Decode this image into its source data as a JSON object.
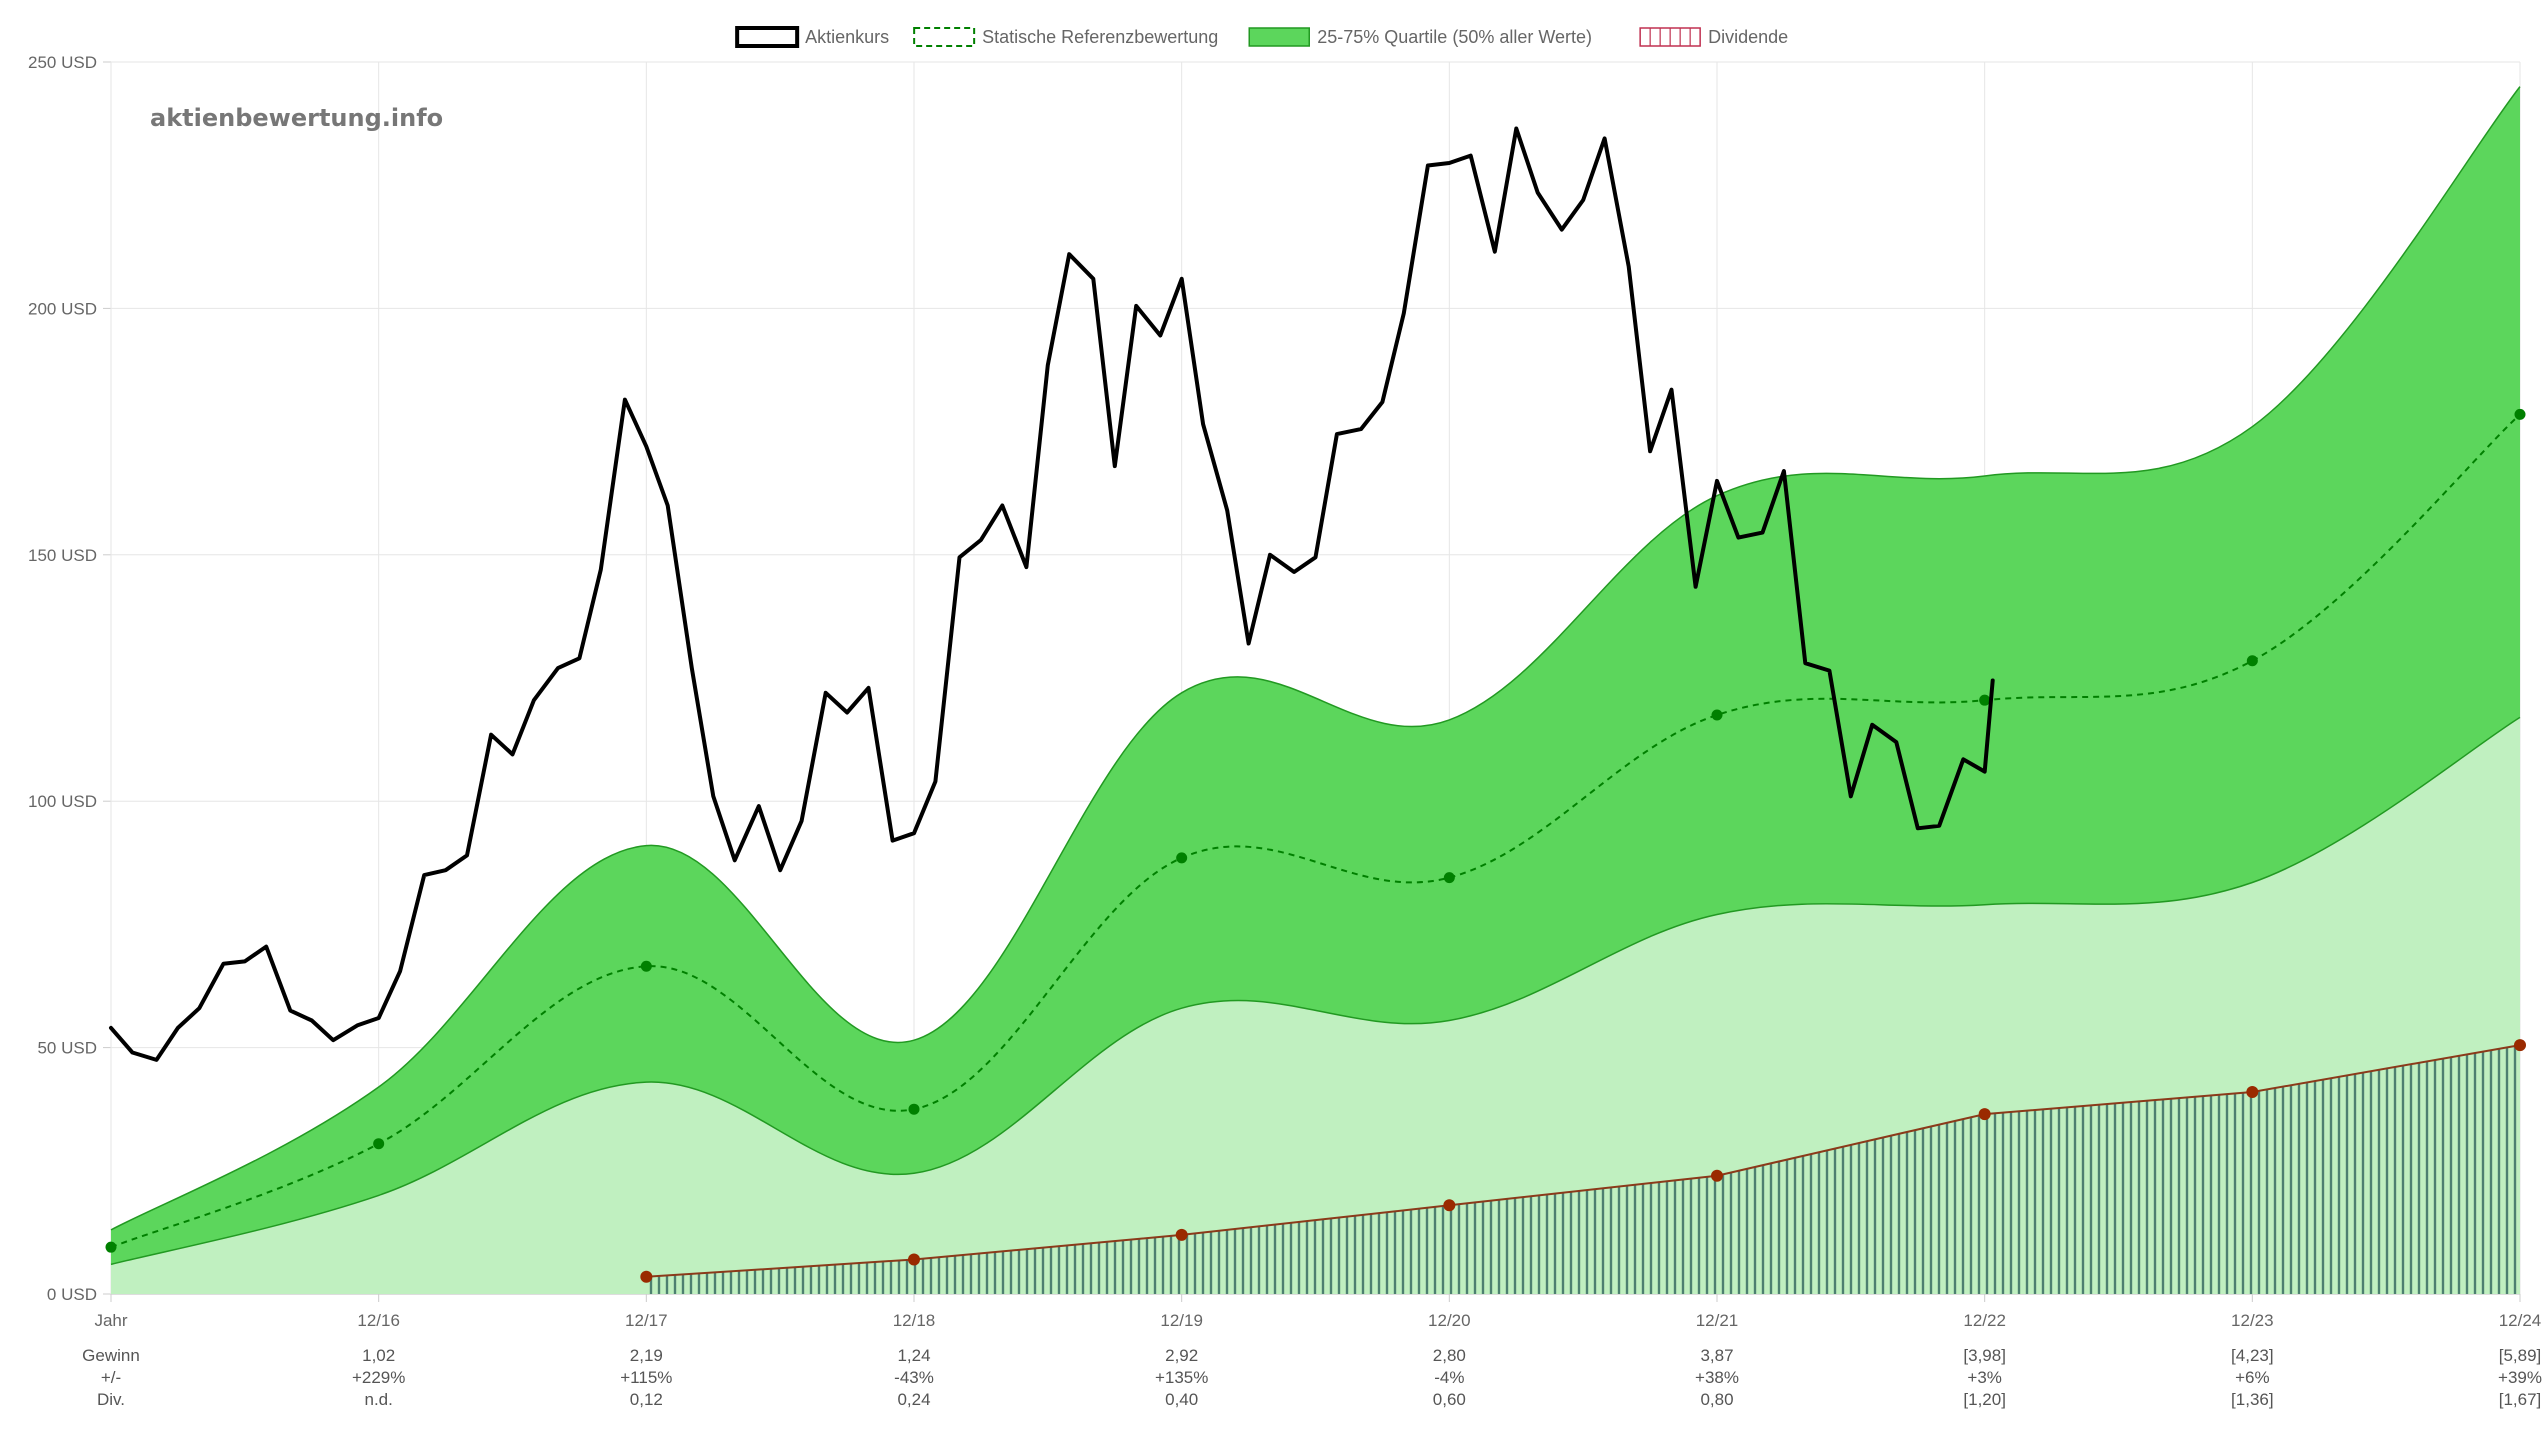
{
  "watermark": "aktienbewertung.info",
  "legend": [
    {
      "key": "price",
      "label": "Aktienkurs"
    },
    {
      "key": "ref",
      "label": "Statische Referenzbewertung"
    },
    {
      "key": "quartile",
      "label": "25-75% Quartile (50% aller Werte)"
    },
    {
      "key": "dividend",
      "label": "Dividende"
    }
  ],
  "colors": {
    "price": "#000000",
    "ref": "#008000",
    "quartile_band": "#5cd65c",
    "lower_area": "#c0f0c0",
    "band_line": "#229922",
    "dividend_line": "#8b3a1a",
    "dividend_point": "#9a2a00",
    "dividend_hatch": "#4d8070",
    "grid": "#e6e6e6"
  },
  "chart_data": {
    "type": "line",
    "ylim": [
      0,
      250
    ],
    "y_ticks": [
      {
        "value": 0,
        "label": "0 USD"
      },
      {
        "value": 50,
        "label": "50 USD"
      },
      {
        "value": 100,
        "label": "100 USD"
      },
      {
        "value": 150,
        "label": "150 USD"
      },
      {
        "value": 200,
        "label": "200 USD"
      },
      {
        "value": 250,
        "label": "250 USD"
      }
    ],
    "x_ticks": [
      "Jahr",
      "12/16",
      "12/17",
      "12/18",
      "12/19",
      "12/20",
      "12/21",
      "12/22",
      "12/23",
      "12/24"
    ],
    "x_tick_values": [
      2015.0,
      2016.0,
      2017.0,
      2018.0,
      2019.0,
      2020.0,
      2021.0,
      2022.0,
      2023.0,
      2024.0
    ],
    "xlim": [
      2015.0,
      2024.0
    ],
    "table_rows": [
      {
        "label": "Gewinn",
        "values": [
          "1,02",
          "2,19",
          "1,24",
          "2,92",
          "2,80",
          "3,87",
          "[3,98]",
          "[4,23]",
          "[5,89]"
        ]
      },
      {
        "label": "+/-",
        "values": [
          "+229%",
          "+115%",
          "-43%",
          "+135%",
          "-4%",
          "+38%",
          "+3%",
          "+6%",
          "+39%"
        ]
      },
      {
        "label": "Div.",
        "values": [
          "n.d.",
          "0,12",
          "0,24",
          "0,40",
          "0,60",
          "0,80",
          "[1,20]",
          "[1,36]",
          "[1,67]"
        ]
      }
    ],
    "series": [
      {
        "name": "Aktienkurs",
        "key": "price",
        "points": [
          [
            2015.0,
            54
          ],
          [
            2015.08,
            49
          ],
          [
            2015.17,
            47.5
          ],
          [
            2015.25,
            54
          ],
          [
            2015.33,
            58
          ],
          [
            2015.42,
            67
          ],
          [
            2015.5,
            67.5
          ],
          [
            2015.58,
            70.5
          ],
          [
            2015.67,
            57.5
          ],
          [
            2015.75,
            55.5
          ],
          [
            2015.83,
            51.5
          ],
          [
            2015.92,
            54.5
          ],
          [
            2016.0,
            56
          ],
          [
            2016.08,
            65.5
          ],
          [
            2016.17,
            85
          ],
          [
            2016.25,
            86
          ],
          [
            2016.33,
            89
          ],
          [
            2016.42,
            113.5
          ],
          [
            2016.5,
            109.5
          ],
          [
            2016.58,
            120.5
          ],
          [
            2016.67,
            127
          ],
          [
            2016.75,
            129
          ],
          [
            2016.83,
            147
          ],
          [
            2016.92,
            181.5
          ],
          [
            2017.0,
            172
          ],
          [
            2017.08,
            160
          ],
          [
            2017.17,
            127
          ],
          [
            2017.25,
            101
          ],
          [
            2017.33,
            88
          ],
          [
            2017.42,
            99
          ],
          [
            2017.5,
            86
          ],
          [
            2017.58,
            96
          ],
          [
            2017.67,
            122
          ],
          [
            2017.75,
            118
          ],
          [
            2017.83,
            123
          ],
          [
            2017.92,
            92
          ],
          [
            2018.0,
            93.5
          ],
          [
            2018.08,
            104
          ],
          [
            2018.17,
            149.5
          ],
          [
            2018.25,
            153
          ],
          [
            2018.33,
            160
          ],
          [
            2018.42,
            147.5
          ],
          [
            2018.5,
            188.5
          ],
          [
            2018.58,
            211
          ],
          [
            2018.67,
            206
          ],
          [
            2018.75,
            168
          ],
          [
            2018.83,
            200.5
          ],
          [
            2018.92,
            194.5
          ],
          [
            2019.0,
            206
          ],
          [
            2019.08,
            176.5
          ],
          [
            2019.17,
            159
          ],
          [
            2019.25,
            132
          ],
          [
            2019.33,
            150
          ],
          [
            2019.42,
            146.5
          ],
          [
            2019.5,
            149.5
          ],
          [
            2019.58,
            174.5
          ],
          [
            2019.67,
            175.5
          ],
          [
            2019.75,
            181
          ],
          [
            2019.83,
            199
          ],
          [
            2019.92,
            229
          ],
          [
            2020.0,
            229.5
          ],
          [
            2020.08,
            231
          ],
          [
            2020.17,
            211.5
          ],
          [
            2020.25,
            236.5
          ],
          [
            2020.33,
            223.5
          ],
          [
            2020.42,
            216
          ],
          [
            2020.5,
            222
          ],
          [
            2020.58,
            234.5
          ],
          [
            2020.67,
            208.5
          ],
          [
            2020.75,
            171
          ],
          [
            2020.83,
            183.5
          ],
          [
            2020.92,
            143.5
          ],
          [
            2021.0,
            165
          ],
          [
            2021.08,
            153.5
          ],
          [
            2021.17,
            154.5
          ],
          [
            2021.25,
            167
          ],
          [
            2021.33,
            128
          ],
          [
            2021.42,
            126.5
          ],
          [
            2021.5,
            101
          ],
          [
            2021.58,
            115.5
          ],
          [
            2021.67,
            112
          ],
          [
            2021.75,
            94.5
          ],
          [
            2021.83,
            95
          ],
          [
            2021.92,
            108.5
          ],
          [
            2022.0,
            106
          ],
          [
            2022.03,
            124.5
          ]
        ]
      },
      {
        "name": "Statische Referenzbewertung",
        "key": "ref",
        "points": [
          [
            2015.0,
            9.5
          ],
          [
            2016.0,
            30.5
          ],
          [
            2017.0,
            66.5
          ],
          [
            2018.0,
            37.5
          ],
          [
            2019.0,
            88.5
          ],
          [
            2020.0,
            84.5
          ],
          [
            2021.0,
            117.5
          ],
          [
            2022.0,
            120.5
          ],
          [
            2023.0,
            128.5
          ],
          [
            2024.0,
            178.5
          ]
        ]
      },
      {
        "name": "25-75% Quartile (50% aller Werte)",
        "key": "quartile",
        "upper": [
          [
            2015.0,
            13
          ],
          [
            2016.0,
            42
          ],
          [
            2017.0,
            91
          ],
          [
            2018.0,
            51.5
          ],
          [
            2019.0,
            122
          ],
          [
            2020.0,
            116.5
          ],
          [
            2021.0,
            162
          ],
          [
            2022.0,
            166
          ],
          [
            2023.0,
            176
          ],
          [
            2024.0,
            245
          ]
        ],
        "lower": [
          [
            2015.0,
            6
          ],
          [
            2016.0,
            20
          ],
          [
            2017.0,
            43
          ],
          [
            2018.0,
            24.5
          ],
          [
            2019.0,
            58
          ],
          [
            2020.0,
            55.5
          ],
          [
            2021.0,
            77
          ],
          [
            2022.0,
            79
          ],
          [
            2023.0,
            83.5
          ],
          [
            2024.0,
            117
          ]
        ]
      },
      {
        "name": "Dividende",
        "key": "dividend",
        "points": [
          [
            2017.0,
            3.5
          ],
          [
            2018.0,
            7
          ],
          [
            2019.0,
            12
          ],
          [
            2020.0,
            18
          ],
          [
            2021.0,
            24
          ],
          [
            2022.0,
            36.5
          ],
          [
            2023.0,
            41
          ],
          [
            2024.0,
            50.5
          ]
        ]
      }
    ]
  }
}
